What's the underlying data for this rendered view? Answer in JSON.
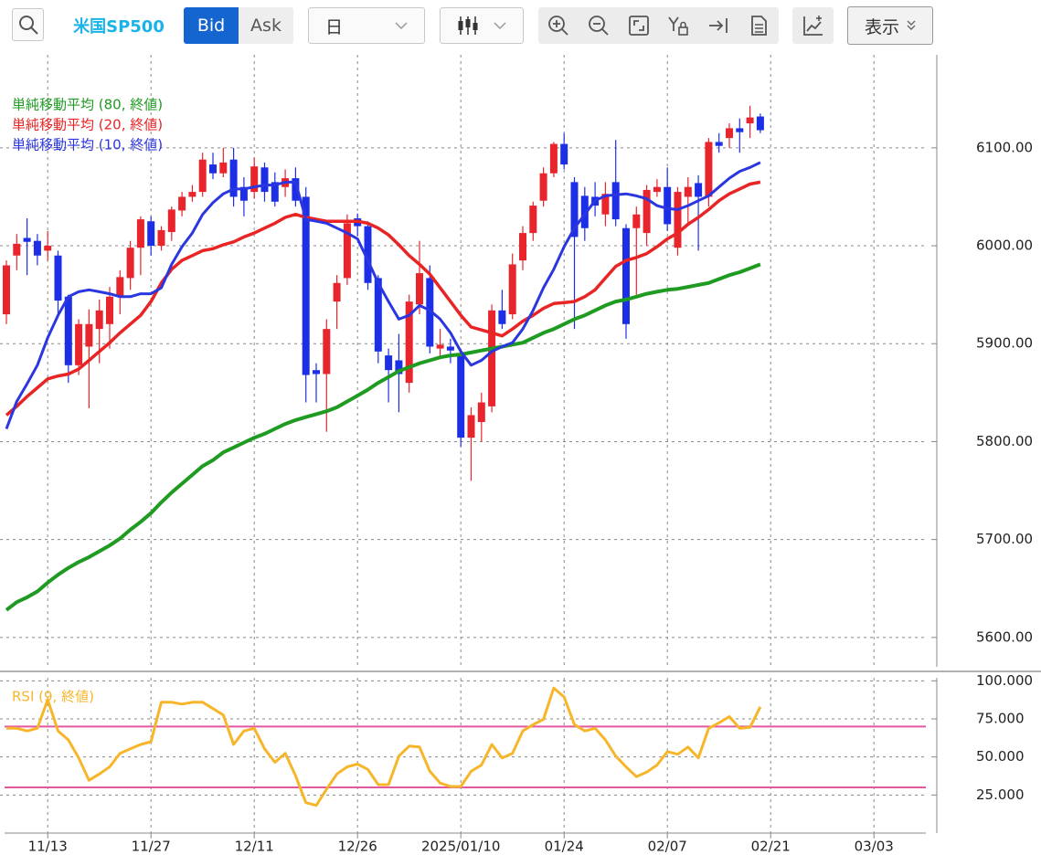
{
  "toolbar": {
    "symbol": "米国SP500",
    "bid": "Bid",
    "ask": "Ask",
    "period": "日",
    "view": "表示"
  },
  "chart_data": [
    {
      "type": "candlestick",
      "categories": [
        null,
        null,
        null,
        null,
        "11/13",
        null,
        null,
        null,
        null,
        null,
        null,
        null,
        null,
        null,
        "11/27",
        null,
        null,
        null,
        null,
        null,
        null,
        null,
        null,
        null,
        "12/11",
        null,
        null,
        null,
        null,
        null,
        null,
        null,
        null,
        null,
        "12/26",
        null,
        null,
        null,
        null,
        null,
        null,
        null,
        null,
        null,
        "2025/01/10",
        null,
        null,
        null,
        null,
        null,
        null,
        null,
        null,
        null,
        "01/24",
        null,
        null,
        null,
        null,
        null,
        null,
        null,
        null,
        null,
        "02/07",
        null,
        null,
        null,
        null,
        null,
        null,
        null,
        null,
        null,
        "02/21",
        null,
        null,
        null,
        null,
        null,
        null,
        null,
        null,
        null,
        "03/03",
        null,
        null,
        null,
        null,
        null
      ],
      "open": [
        5930,
        5990,
        6008,
        6005,
        5995,
        5990,
        5948,
        5878,
        5897,
        5915,
        5920,
        5948,
        5967,
        5998,
        6025,
        6000,
        6014,
        6036,
        6050,
        6055,
        6083,
        6074,
        6088,
        6060,
        6055,
        6080,
        6065,
        6060,
        6069,
        6050,
        5873,
        5869,
        5943,
        5967,
        6028,
        6020,
        5967,
        5888,
        5883,
        5860,
        5940,
        5967,
        5895,
        5897,
        5888,
        5804,
        5820,
        5836,
        5934,
        5930,
        5985,
        6013,
        6046,
        6074,
        6104,
        6065,
        6051,
        6050,
        6032,
        6065,
        6018,
        6018,
        6013,
        6055,
        6060,
        5998,
        6050,
        6064,
        6050,
        6106,
        6110,
        6120,
        6125,
        6132,
        null,
        null,
        null,
        null,
        null,
        null,
        null,
        null,
        null,
        null,
        null,
        null,
        null,
        null,
        null,
        null
      ],
      "high": [
        5985,
        6012,
        6028,
        6012,
        6015,
        5995,
        5950,
        5925,
        5935,
        5945,
        5958,
        5975,
        6005,
        6030,
        6030,
        6020,
        6040,
        6055,
        6062,
        6095,
        6095,
        6100,
        6100,
        6070,
        6090,
        6085,
        6075,
        6078,
        6080,
        6060,
        5880,
        5925,
        5970,
        6032,
        6033,
        6025,
        5970,
        5895,
        5910,
        5950,
        6005,
        5980,
        5915,
        5905,
        5895,
        5835,
        5850,
        5940,
        5955,
        5992,
        6020,
        6045,
        6080,
        6106,
        6115,
        6070,
        6060,
        6065,
        6065,
        6108,
        6022,
        6040,
        6062,
        6068,
        6080,
        6060,
        6070,
        6072,
        6110,
        6115,
        6125,
        6130,
        6143,
        6135,
        null,
        null,
        null,
        null,
        null,
        null,
        null,
        null,
        null,
        null,
        null,
        null,
        null,
        null,
        null,
        null
      ],
      "low": [
        5920,
        5975,
        5970,
        5980,
        5985,
        5930,
        5860,
        5868,
        5834,
        5880,
        5895,
        5930,
        5955,
        5970,
        5990,
        5995,
        6005,
        6030,
        6045,
        6050,
        6068,
        6070,
        6040,
        6030,
        6048,
        6045,
        6040,
        6050,
        6040,
        5840,
        5840,
        5810,
        5915,
        5960,
        6010,
        5955,
        5880,
        5840,
        5830,
        5850,
        5930,
        5890,
        5885,
        5880,
        5795,
        5760,
        5800,
        5830,
        5915,
        5925,
        5975,
        6005,
        6040,
        6070,
        6078,
        5915,
        6005,
        6030,
        6020,
        6020,
        5905,
        5950,
        6000,
        6050,
        6015,
        5990,
        6020,
        5995,
        6040,
        6095,
        6100,
        6095,
        6110,
        6115,
        null,
        null,
        null,
        null,
        null,
        null,
        null,
        null,
        null,
        null,
        null,
        null,
        null,
        null,
        null,
        null
      ],
      "close": [
        5980,
        6002,
        6004,
        5990,
        6000,
        5944,
        5878,
        5920,
        5920,
        5934,
        5948,
        5968,
        5998,
        6027,
        6000,
        6016,
        6037,
        6050,
        6055,
        6088,
        6074,
        6085,
        6050,
        6046,
        6081,
        6055,
        6045,
        6069,
        6046,
        5868,
        5869,
        5915,
        5962,
        6023,
        6020,
        5962,
        5892,
        5873,
        5869,
        5943,
        5972,
        5897,
        5899,
        5893,
        5804,
        5827,
        5840,
        5934,
        5920,
        5981,
        6013,
        6041,
        6074,
        6104,
        6083,
        6009,
        6018,
        6041,
        6053,
        6027,
        5920,
        6032,
        6057,
        6060,
        6022,
        6055,
        6060,
        6050,
        6106,
        6102,
        6120,
        6116,
        6131,
        6118,
        null,
        null,
        null,
        null,
        null,
        null,
        null,
        null,
        null,
        null,
        null,
        null,
        null,
        null,
        null,
        null
      ],
      "up_color": "#e8242c",
      "down_color": "#1d2fe6",
      "series": [
        {
          "name": "単純移動平均 (80, 終値)",
          "color": "#1f9b22",
          "values": [
            5628,
            5636,
            5641,
            5647,
            5656,
            5664,
            5671,
            5677,
            5682,
            5688,
            5694,
            5701,
            5710,
            5718,
            5727,
            5738,
            5748,
            5757,
            5766,
            5775,
            5781,
            5789,
            5794,
            5799,
            5804,
            5808,
            5813,
            5818,
            5822,
            5825,
            5828,
            5831,
            5835,
            5841,
            5847,
            5853,
            5860,
            5866,
            5872,
            5876,
            5880,
            5883,
            5886,
            5888,
            5889,
            5891,
            5893,
            5895,
            5897,
            5899,
            5901,
            5906,
            5911,
            5915,
            5920,
            5925,
            5929,
            5934,
            5939,
            5943,
            5945,
            5948,
            5951,
            5953,
            5955,
            5956,
            5958,
            5960,
            5962,
            5966,
            5970,
            5973,
            5977,
            5981,
            null,
            null,
            null,
            null,
            null,
            null,
            null,
            null,
            null,
            null,
            null,
            null,
            null,
            null,
            null,
            null
          ]
        },
        {
          "name": "単純移動平均 (20, 終値)",
          "color": "#e82424",
          "values": [
            5827,
            5836,
            5846,
            5855,
            5864,
            5867,
            5869,
            5874,
            5883,
            5892,
            5901,
            5911,
            5920,
            5929,
            5943,
            5962,
            5976,
            5985,
            5990,
            5995,
            5997,
            6001,
            6004,
            6009,
            6013,
            6018,
            6023,
            6029,
            6032,
            6029,
            6027,
            6025,
            6025,
            6025,
            6025,
            6023,
            6018,
            6011,
            6001,
            5990,
            5981,
            5971,
            5957,
            5943,
            5929,
            5917,
            5914,
            5911,
            5908,
            5915,
            5923,
            5929,
            5936,
            5941,
            5942,
            5943,
            5948,
            5955,
            5967,
            5979,
            5985,
            5988,
            5992,
            5999,
            6007,
            6013,
            6022,
            6029,
            6037,
            6046,
            6053,
            6058,
            6063,
            6065,
            null,
            null,
            null,
            null,
            null,
            null,
            null,
            null,
            null,
            null,
            null,
            null,
            null,
            null,
            null,
            null
          ]
        },
        {
          "name": "単純移動平均 (10, 終値)",
          "color": "#2a36e0",
          "values": [
            5813,
            5841,
            5859,
            5878,
            5906,
            5929,
            5948,
            5953,
            5955,
            5953,
            5951,
            5948,
            5948,
            5951,
            5951,
            5957,
            5981,
            5999,
            6013,
            6032,
            6044,
            6053,
            6058,
            6058,
            6060,
            6062,
            6062,
            6065,
            6065,
            6027,
            6025,
            6023,
            6018,
            6013,
            6007,
            5985,
            5962,
            5943,
            5925,
            5929,
            5939,
            5934,
            5925,
            5911,
            5892,
            5878,
            5883,
            5892,
            5897,
            5901,
            5915,
            5934,
            5957,
            5976,
            5999,
            6018,
            6032,
            6046,
            6051,
            6052,
            6053,
            6051,
            6048,
            6041,
            6038,
            6037,
            6041,
            6046,
            6051,
            6060,
            6069,
            6076,
            6080,
            6085,
            null,
            null,
            null,
            null,
            null,
            null,
            null,
            null,
            null,
            null,
            null,
            null,
            null,
            null,
            null,
            null
          ]
        }
      ],
      "ylim": [
        5570,
        6195
      ],
      "yticks": [
        {
          "value": 5600,
          "label": "5600.00"
        },
        {
          "value": 5700,
          "label": "5700.00"
        },
        {
          "value": 5800,
          "label": "5800.00"
        },
        {
          "value": 5900,
          "label": "5900.00"
        },
        {
          "value": 6000,
          "label": "6000.00"
        },
        {
          "value": 6100,
          "label": "6100.00"
        }
      ],
      "grid": true
    },
    {
      "type": "line",
      "series": [
        {
          "name": "RSI (9, 終値)",
          "color": "#f7b52a",
          "values": [
            68.8,
            68.8,
            67.1,
            68.8,
            87.6,
            67.1,
            61.2,
            49.4,
            34.7,
            38.8,
            43.5,
            52.4,
            55.3,
            58.2,
            60.0,
            85.9,
            85.9,
            84.7,
            85.9,
            85.9,
            81.8,
            77.6,
            58.2,
            67.1,
            68.8,
            55.3,
            46.5,
            52.4,
            37.6,
            20.0,
            18.2,
            28.8,
            38.8,
            43.5,
            45.3,
            41.8,
            31.8,
            31.8,
            50.6,
            57.1,
            56.5,
            40.6,
            32.9,
            30.6,
            30.6,
            40.6,
            44.7,
            58.2,
            49.4,
            52.4,
            67.1,
            71.2,
            74.7,
            95.3,
            89.4,
            71.2,
            67.1,
            68.8,
            61.2,
            50.6,
            43.5,
            37.1,
            40.0,
            44.7,
            53.5,
            51.8,
            56.5,
            49.4,
            68.8,
            72.4,
            76.5,
            68.8,
            69.4,
            82.9,
            null,
            null,
            null,
            null,
            null,
            null,
            null,
            null,
            null,
            null,
            null,
            null,
            null,
            null,
            null,
            null
          ]
        }
      ],
      "levels": [
        70,
        30
      ],
      "level_color": "#e2589f",
      "ylim": [
        0,
        102
      ],
      "yticks": [
        {
          "value": 25,
          "label": "25.000"
        },
        {
          "value": 50,
          "label": "50.000"
        },
        {
          "value": 75,
          "label": "75.000"
        },
        {
          "value": 100,
          "label": "100.000"
        }
      ],
      "grid": true
    }
  ]
}
